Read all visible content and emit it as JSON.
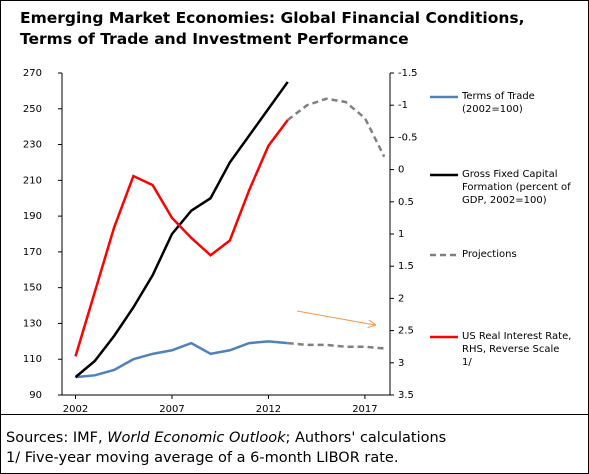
{
  "chart_data": {
    "type": "line",
    "title": "Emerging Market Economies: Global Financial Conditions, Terms of Trade and Investment Performance",
    "x": [
      2002,
      2003,
      2004,
      2005,
      2006,
      2007,
      2008,
      2009,
      2010,
      2011,
      2012,
      2013,
      2014,
      2015,
      2016,
      2017,
      2018
    ],
    "xlim": [
      2001.3,
      2018.3
    ],
    "xticks": [
      2002,
      2007,
      2012,
      2017
    ],
    "ylim": [
      90,
      270
    ],
    "yticks": [
      90,
      110,
      130,
      150,
      170,
      190,
      210,
      230,
      250,
      270
    ],
    "y2lim": [
      -1.5,
      3.5
    ],
    "y2_inverted": true,
    "y2ticks": [
      -1.5,
      -1,
      -0.5,
      0,
      0.5,
      1,
      1.5,
      2,
      2.5,
      3,
      3.5
    ],
    "series": [
      {
        "name": "Terms of Trade (2002=100)",
        "color": "#4f81bd",
        "dashed": false,
        "values": [
          100,
          101,
          104,
          110,
          113,
          115,
          119,
          113,
          115,
          119,
          120,
          119,
          null,
          null,
          null,
          null,
          null
        ]
      },
      {
        "name": "Gross Fixed Capital Formation (percent of GDP, 2002=100)",
        "color": "#000000",
        "dashed": false,
        "values": [
          100,
          109,
          123,
          139,
          157,
          180,
          193,
          200,
          220,
          235,
          250,
          265,
          null,
          null,
          null,
          null,
          null
        ]
      },
      {
        "name": "Projections",
        "color": "#808080",
        "dashed": true,
        "values": [
          null,
          null,
          null,
          null,
          null,
          null,
          null,
          null,
          null,
          null,
          null,
          119,
          118,
          118,
          117,
          117,
          116
        ]
      },
      {
        "name": "US Real Interest Rate, RHS, Reverse Scale 1/",
        "color": "#ff0000",
        "dashed": false,
        "axis": "y2",
        "values": [
          2.9,
          1.9,
          0.9,
          0.1,
          0.24,
          0.75,
          1.06,
          1.33,
          1.1,
          0.32,
          -0.37,
          -0.77,
          null,
          null,
          null,
          null,
          null
        ]
      },
      {
        "color": "#808080",
        "dashed": true,
        "axis": "y2",
        "values": [
          null,
          null,
          null,
          null,
          null,
          null,
          null,
          null,
          null,
          null,
          null,
          -0.77,
          -1.0,
          -1.1,
          -1.05,
          -0.8,
          -0.2
        ]
      }
    ],
    "sources": [
      "Sources: IMF, ",
      "World Economic Outlook",
      "; Authors' calculations"
    ],
    "footnote": "1/ Five-year moving average of a 6-month LIBOR rate."
  }
}
